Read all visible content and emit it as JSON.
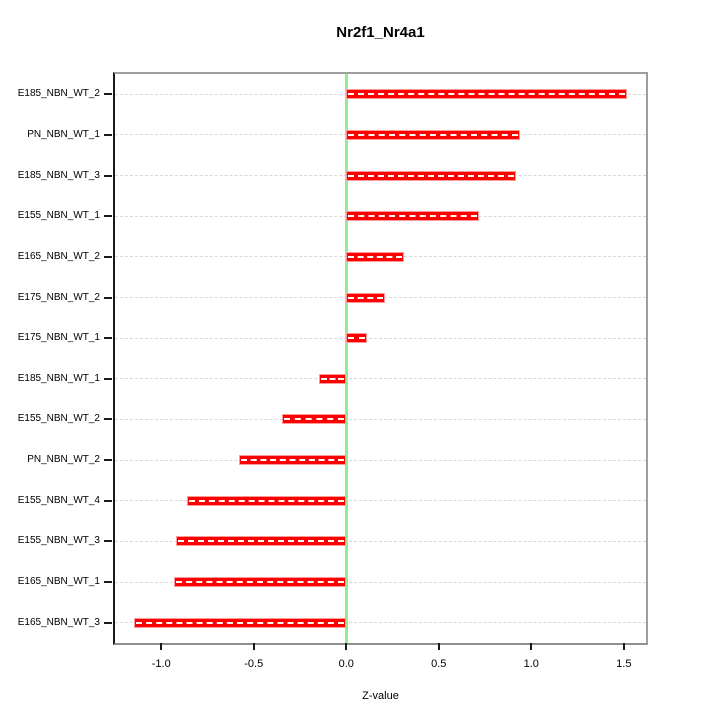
{
  "title": "Nr2f1_Nr4a1",
  "chart_data": {
    "type": "bar",
    "orientation": "horizontal",
    "title": "Nr2f1_Nr4a1",
    "xlabel": "Z-value",
    "ylabel": "",
    "categories": [
      "E185_NBN_WT_2",
      "PN_NBN_WT_1",
      "E185_NBN_WT_3",
      "E155_NBN_WT_1",
      "E165_NBN_WT_2",
      "E175_NBN_WT_2",
      "E175_NBN_WT_1",
      "E185_NBN_WT_1",
      "E155_NBN_WT_2",
      "PN_NBN_WT_2",
      "E155_NBN_WT_4",
      "E155_NBN_WT_3",
      "E165_NBN_WT_1",
      "E165_NBN_WT_3"
    ],
    "values": [
      1.52,
      0.94,
      0.92,
      0.72,
      0.31,
      0.21,
      0.11,
      -0.15,
      -0.35,
      -0.58,
      -0.86,
      -0.92,
      -0.93,
      -1.15
    ],
    "x_ticks": [
      -1.0,
      -0.5,
      0.0,
      0.5,
      1.0,
      1.5
    ],
    "x_tick_labels": [
      "-1.0",
      "-0.5",
      "0.0",
      "0.5",
      "1.0",
      "1.5"
    ],
    "xlim": [
      -1.25,
      1.62
    ],
    "grid": "horizontal dashed line per category",
    "legend": "none",
    "colors": {
      "bar_fill": "#ff0000",
      "bar_border": "#ff9a9a",
      "bar_center_dash": "#ffffff",
      "zero_line": "#90ee90",
      "gridline": "#d8d8d8",
      "box_border": "#9e9e9e",
      "axis": "#1a1a1a",
      "background": "#ffffff"
    }
  }
}
